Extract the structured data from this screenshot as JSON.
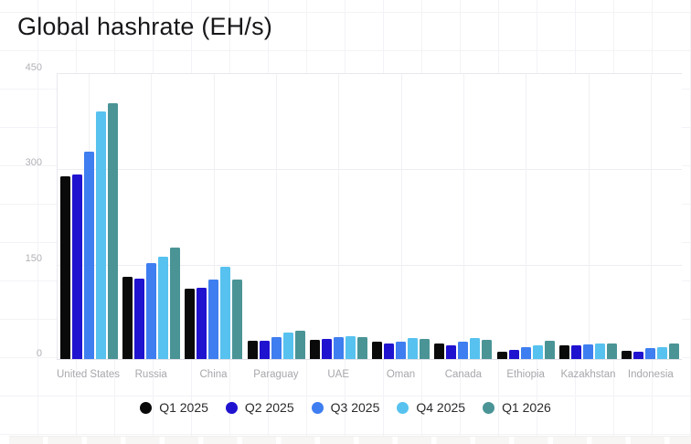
{
  "title": "Global hashrate (EH/s)",
  "chart_data": {
    "type": "bar",
    "title": "Global hashrate (EH/s)",
    "unit": "EH/s",
    "categories": [
      "United States",
      "Russia",
      "China",
      "Paraguay",
      "UAE",
      "Oman",
      "Canada",
      "Ethiopia",
      "Kazakhstan",
      "Indonesia"
    ],
    "series": [
      {
        "name": "Q1 2025",
        "color": "#0a0a0a",
        "values": [
          288,
          129,
          110,
          29,
          30,
          28,
          24,
          12,
          22,
          13
        ]
      },
      {
        "name": "Q2 2025",
        "color": "#2013d0",
        "values": [
          291,
          127,
          112,
          29,
          32,
          25,
          22,
          15,
          21,
          11
        ]
      },
      {
        "name": "Q3 2025",
        "color": "#3e7ef0",
        "values": [
          326,
          151,
          125,
          35,
          34,
          28,
          28,
          19,
          23,
          17
        ]
      },
      {
        "name": "Q4 2025",
        "color": "#57c2ef",
        "values": [
          390,
          161,
          145,
          42,
          36,
          33,
          33,
          22,
          25,
          18
        ]
      },
      {
        "name": "Q1 2026",
        "color": "#4a9496",
        "values": [
          402,
          176,
          125,
          44,
          34,
          32,
          30,
          29,
          24,
          24
        ]
      }
    ],
    "y_axis": {
      "min": 0,
      "max": 450,
      "ticks": [
        450,
        300,
        150,
        0
      ]
    },
    "xlabel": "",
    "ylabel": "",
    "legend_position": "bottom",
    "grid": true
  }
}
